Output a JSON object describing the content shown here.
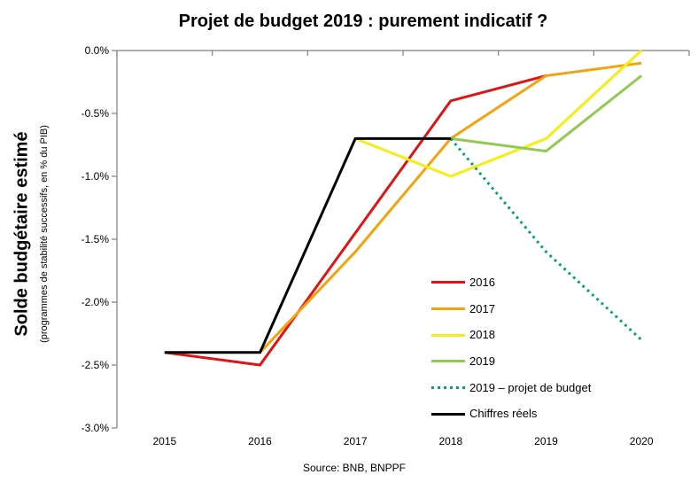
{
  "title": "Projet de budget 2019 : purement indicatif ?",
  "y_axis": {
    "title": "Solde budgétaire estimé",
    "subtitle": "(programmes de stabilité successifs, en % du PIB)"
  },
  "source": "Source: BNB, BNPPF",
  "chart_data": {
    "type": "line",
    "title": "Projet de budget 2019 : purement indicatif ?",
    "ylabel": "Solde budgétaire estimé (programmes de stabilité successifs, en % du PIB)",
    "categories": [
      "2015",
      "2016",
      "2017",
      "2018",
      "2019",
      "2020"
    ],
    "series": [
      {
        "name": "2016",
        "color": "#e01414",
        "style": "solid",
        "values": [
          -2.4,
          -2.5,
          -1.45,
          -0.4,
          -0.2,
          null
        ]
      },
      {
        "name": "2017",
        "color": "#f2a30d",
        "style": "solid",
        "values": [
          null,
          -2.4,
          -1.6,
          -0.7,
          -0.2,
          -0.1
        ]
      },
      {
        "name": "2018",
        "color": "#f5ee15",
        "style": "solid",
        "values": [
          null,
          null,
          -0.7,
          -1.0,
          -0.7,
          0.0
        ]
      },
      {
        "name": "2019",
        "color": "#92c952",
        "style": "solid",
        "values": [
          null,
          null,
          null,
          -0.7,
          -0.8,
          -0.2
        ]
      },
      {
        "name": "2019 – projet de budget",
        "color": "#00a478",
        "style": "dotted",
        "values": [
          null,
          null,
          null,
          -0.7,
          -1.6,
          -2.3
        ]
      },
      {
        "name": "Chiffres réels",
        "color": "#000000",
        "style": "solid",
        "values": [
          -2.4,
          -2.4,
          -0.7,
          -0.7,
          null,
          null
        ]
      }
    ],
    "ylim": [
      -3.0,
      0.0
    ],
    "y_ticks": [
      0,
      -0.5,
      -1.0,
      -1.5,
      -2.0,
      -2.5,
      -3.0
    ],
    "y_tick_labels": [
      "0.0%",
      "-0.5%",
      "-1.0%",
      "-1.5%",
      "-2.0%",
      "-2.5%",
      "-3.0%"
    ],
    "grid": false,
    "legend_position": "inside-right",
    "axis_color": "#808080"
  }
}
